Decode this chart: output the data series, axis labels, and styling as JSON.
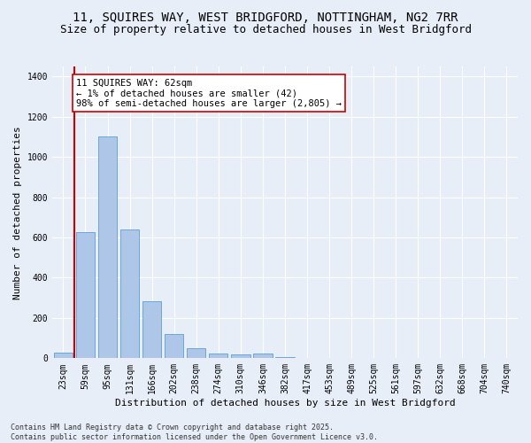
{
  "title_line1": "11, SQUIRES WAY, WEST BRIDGFORD, NOTTINGHAM, NG2 7RR",
  "title_line2": "Size of property relative to detached houses in West Bridgford",
  "xlabel": "Distribution of detached houses by size in West Bridgford",
  "ylabel": "Number of detached properties",
  "categories": [
    "23sqm",
    "59sqm",
    "95sqm",
    "131sqm",
    "166sqm",
    "202sqm",
    "238sqm",
    "274sqm",
    "310sqm",
    "346sqm",
    "382sqm",
    "417sqm",
    "453sqm",
    "489sqm",
    "525sqm",
    "561sqm",
    "597sqm",
    "632sqm",
    "668sqm",
    "704sqm",
    "740sqm"
  ],
  "values": [
    30,
    625,
    1100,
    640,
    285,
    120,
    50,
    25,
    20,
    25,
    5,
    0,
    0,
    0,
    0,
    0,
    0,
    0,
    0,
    0,
    0
  ],
  "bar_color": "#aec6e8",
  "bar_edge_color": "#5a9fd4",
  "vline_color": "#cc0000",
  "annotation_text": "11 SQUIRES WAY: 62sqm\n← 1% of detached houses are smaller (42)\n98% of semi-detached houses are larger (2,805) →",
  "annotation_box_color": "#ffffff",
  "annotation_box_edge_color": "#cc0000",
  "ylim": [
    0,
    1450
  ],
  "yticks": [
    0,
    200,
    400,
    600,
    800,
    1000,
    1200,
    1400
  ],
  "background_color": "#e8eef8",
  "plot_bg_color": "#e8eef8",
  "footer_line1": "Contains HM Land Registry data © Crown copyright and database right 2025.",
  "footer_line2": "Contains public sector information licensed under the Open Government Licence v3.0.",
  "title_fontsize": 10,
  "subtitle_fontsize": 9,
  "axis_label_fontsize": 8,
  "tick_fontsize": 7,
  "annotation_fontsize": 7.5,
  "footer_fontsize": 6
}
